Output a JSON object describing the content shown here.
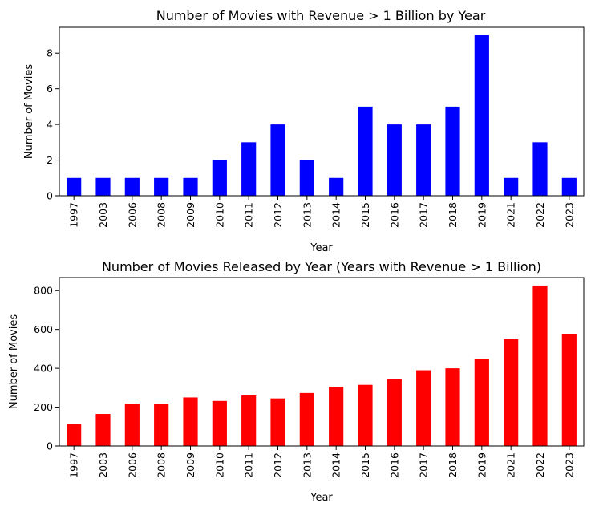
{
  "chart_data": [
    {
      "type": "bar",
      "title": "Number of Movies with Revenue > 1 Billion by Year",
      "xlabel": "Year",
      "ylabel": "Number of Movies",
      "categories": [
        "1997",
        "2003",
        "2006",
        "2008",
        "2009",
        "2010",
        "2011",
        "2012",
        "2013",
        "2014",
        "2015",
        "2016",
        "2017",
        "2018",
        "2019",
        "2021",
        "2022",
        "2023"
      ],
      "values": [
        1,
        1,
        1,
        1,
        1,
        2,
        3,
        4,
        2,
        1,
        5,
        4,
        4,
        5,
        9,
        1,
        3,
        1
      ],
      "ylim": [
        0,
        9.45
      ],
      "yticks": [
        0,
        2,
        4,
        6,
        8
      ],
      "color": "#0000ff",
      "grid": false,
      "legend": "none"
    },
    {
      "type": "bar",
      "title": "Number of Movies Released by Year (Years with Revenue > 1 Billion)",
      "xlabel": "Year",
      "ylabel": "Number of Movies",
      "categories": [
        "1997",
        "2003",
        "2006",
        "2008",
        "2009",
        "2010",
        "2011",
        "2012",
        "2013",
        "2014",
        "2015",
        "2016",
        "2017",
        "2018",
        "2019",
        "2021",
        "2022",
        "2023"
      ],
      "values": [
        115,
        165,
        218,
        218,
        250,
        232,
        260,
        245,
        273,
        305,
        315,
        345,
        390,
        400,
        447,
        550,
        826,
        578
      ],
      "ylim": [
        0,
        867
      ],
      "yticks": [
        0,
        200,
        400,
        600,
        800
      ],
      "color": "#ff0000",
      "grid": false,
      "legend": "none"
    }
  ]
}
